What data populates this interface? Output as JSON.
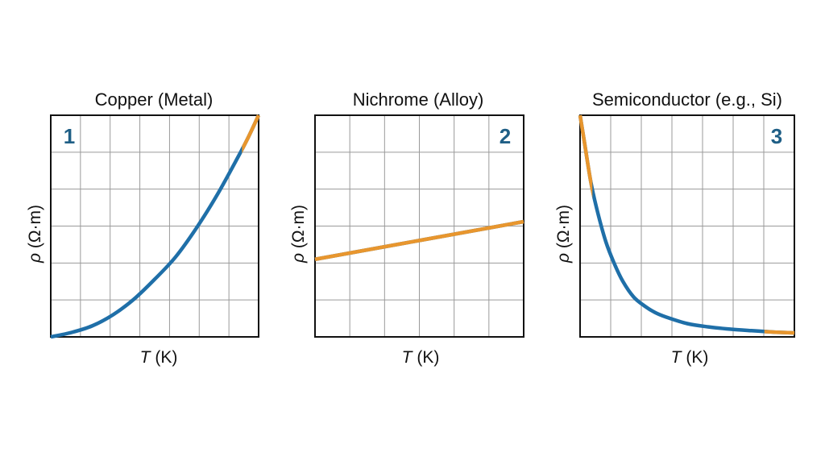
{
  "figure": {
    "colors": {
      "primary": "#1f6fa8",
      "accent": "#e8962e",
      "number": "#1f5f86"
    }
  },
  "chart_data": [
    {
      "type": "line",
      "title": "Copper (Metal)",
      "panel_number": "1",
      "xlabel_symbol": "T",
      "xlabel_unit": " (K)",
      "ylabel_symbol": "ρ",
      "ylabel_unit": " (Ω·m)",
      "xlim": [
        0,
        1
      ],
      "ylim": [
        0,
        1
      ],
      "grid": true,
      "series": [
        {
          "x": [
            0,
            0.1,
            0.2,
            0.3,
            0.4,
            0.5,
            0.6,
            0.7,
            0.8,
            0.9,
            0.95,
            1.0
          ],
          "values": [
            0.0,
            0.02,
            0.05,
            0.1,
            0.17,
            0.26,
            0.36,
            0.49,
            0.64,
            0.81,
            0.9,
            1.0
          ]
        }
      ]
    },
    {
      "type": "line",
      "title": "Nichrome (Alloy)",
      "panel_number": "2",
      "xlabel_symbol": "T",
      "xlabel_unit": " (K)",
      "ylabel_symbol": "ρ",
      "ylabel_unit": " (Ω·m)",
      "xlim": [
        0,
        1
      ],
      "ylim": [
        0,
        1
      ],
      "grid": true,
      "series": [
        {
          "x": [
            0,
            1.0
          ],
          "values": [
            0.35,
            0.52
          ]
        }
      ]
    },
    {
      "type": "line",
      "title": "Semiconductor (e.g., Si)",
      "panel_number": "3",
      "xlabel_symbol": "T",
      "xlabel_unit": " (K)",
      "ylabel_symbol": "ρ",
      "ylabel_unit": " (Ω·m)",
      "xlim": [
        0,
        1
      ],
      "ylim": [
        0,
        1
      ],
      "grid": true,
      "series": [
        {
          "x": [
            0,
            0.02,
            0.05,
            0.08,
            0.12,
            0.16,
            0.2,
            0.25,
            0.3,
            0.35,
            0.4,
            0.5,
            0.6,
            0.7,
            0.8,
            0.9,
            1.0
          ],
          "values": [
            1.0,
            0.88,
            0.7,
            0.57,
            0.43,
            0.33,
            0.25,
            0.18,
            0.14,
            0.11,
            0.09,
            0.06,
            0.045,
            0.035,
            0.028,
            0.022,
            0.018
          ]
        }
      ]
    }
  ]
}
